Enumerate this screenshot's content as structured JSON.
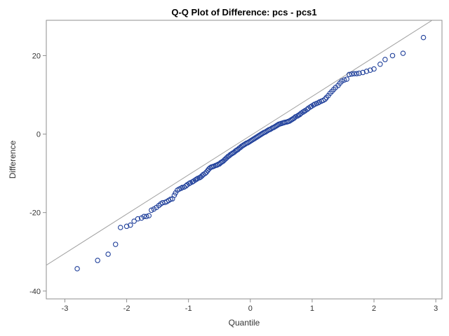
{
  "chart_data": {
    "type": "scatter",
    "title": "Q-Q Plot of Difference: pcs - pcs1",
    "xlabel": "Quantile",
    "ylabel": "Difference",
    "xlim": [
      -3.3,
      3.1
    ],
    "ylim": [
      -42,
      29
    ],
    "x_ticks": [
      -3,
      -2,
      -1,
      0,
      1,
      2,
      3
    ],
    "y_ticks": [
      -40,
      -20,
      0,
      20
    ],
    "x_tick_labels": [
      "-3",
      "-2",
      "-1",
      "0",
      "1",
      "2",
      "3"
    ],
    "y_tick_labels": [
      "-40",
      "-20",
      "0",
      "20"
    ],
    "grid": false,
    "legend": "none",
    "reference_line": {
      "intercept": -0.4,
      "slope": 10.0
    },
    "series": [
      {
        "marker": "open-circle",
        "color": "#1f3f9a",
        "points": [
          [
            -2.8,
            -34.3
          ],
          [
            -2.47,
            -32.2
          ],
          [
            -2.3,
            -30.6
          ],
          [
            -2.18,
            -28.1
          ],
          [
            -2.1,
            -23.8
          ],
          [
            -2.0,
            -23.5
          ],
          [
            -1.94,
            -23.2
          ],
          [
            -1.88,
            -22.2
          ],
          [
            -1.82,
            -21.6
          ],
          [
            -1.76,
            -21.4
          ],
          [
            -1.72,
            -21.0
          ],
          [
            -1.68,
            -21.0
          ],
          [
            -1.64,
            -20.8
          ],
          [
            -1.6,
            -19.4
          ],
          [
            -1.56,
            -19.1
          ],
          [
            -1.52,
            -18.7
          ],
          [
            -1.48,
            -18.2
          ],
          [
            -1.45,
            -17.8
          ],
          [
            -1.42,
            -17.5
          ],
          [
            -1.38,
            -17.4
          ],
          [
            -1.35,
            -17.2
          ],
          [
            -1.32,
            -16.9
          ],
          [
            -1.29,
            -16.6
          ],
          [
            -1.26,
            -16.5
          ],
          [
            -1.23,
            -15.6
          ],
          [
            -1.21,
            -15.0
          ],
          [
            -1.18,
            -14.3
          ],
          [
            -1.15,
            -14.0
          ],
          [
            -1.12,
            -13.8
          ],
          [
            -1.1,
            -13.6
          ],
          [
            -1.07,
            -13.5
          ],
          [
            -1.04,
            -13.2
          ],
          [
            -1.02,
            -12.9
          ],
          [
            -0.99,
            -12.6
          ],
          [
            -0.97,
            -12.4
          ],
          [
            -0.94,
            -12.2
          ],
          [
            -0.92,
            -12.0
          ],
          [
            -0.89,
            -11.7
          ],
          [
            -0.87,
            -11.5
          ],
          [
            -0.85,
            -11.3
          ],
          [
            -0.82,
            -11.1
          ],
          [
            -0.8,
            -10.9
          ],
          [
            -0.78,
            -10.6
          ],
          [
            -0.76,
            -10.3
          ],
          [
            -0.73,
            -10.0
          ],
          [
            -0.71,
            -9.7
          ],
          [
            -0.69,
            -9.3
          ],
          [
            -0.67,
            -8.9
          ],
          [
            -0.65,
            -8.6
          ],
          [
            -0.63,
            -8.4
          ],
          [
            -0.61,
            -8.3
          ],
          [
            -0.59,
            -8.2
          ],
          [
            -0.56,
            -8.0
          ],
          [
            -0.54,
            -7.9
          ],
          [
            -0.52,
            -7.7
          ],
          [
            -0.5,
            -7.6
          ],
          [
            -0.48,
            -7.3
          ],
          [
            -0.46,
            -7.1
          ],
          [
            -0.44,
            -6.9
          ],
          [
            -0.42,
            -6.6
          ],
          [
            -0.4,
            -6.3
          ],
          [
            -0.38,
            -6.0
          ],
          [
            -0.36,
            -5.7
          ],
          [
            -0.34,
            -5.5
          ],
          [
            -0.32,
            -5.2
          ],
          [
            -0.3,
            -5.0
          ],
          [
            -0.28,
            -4.8
          ],
          [
            -0.26,
            -4.6
          ],
          [
            -0.24,
            -4.3
          ],
          [
            -0.22,
            -4.1
          ],
          [
            -0.2,
            -3.9
          ],
          [
            -0.18,
            -3.6
          ],
          [
            -0.16,
            -3.4
          ],
          [
            -0.14,
            -3.1
          ],
          [
            -0.12,
            -2.9
          ],
          [
            -0.1,
            -2.7
          ],
          [
            -0.08,
            -2.5
          ],
          [
            -0.06,
            -2.3
          ],
          [
            -0.04,
            -2.2
          ],
          [
            -0.02,
            -2.0
          ],
          [
            0.0,
            -1.8
          ],
          [
            0.02,
            -1.6
          ],
          [
            0.04,
            -1.4
          ],
          [
            0.06,
            -1.2
          ],
          [
            0.08,
            -1.0
          ],
          [
            0.1,
            -0.8
          ],
          [
            0.12,
            -0.6
          ],
          [
            0.14,
            -0.4
          ],
          [
            0.16,
            -0.2
          ],
          [
            0.18,
            0.0
          ],
          [
            0.2,
            0.2
          ],
          [
            0.22,
            0.4
          ],
          [
            0.24,
            0.5
          ],
          [
            0.26,
            0.7
          ],
          [
            0.28,
            0.9
          ],
          [
            0.3,
            1.1
          ],
          [
            0.32,
            1.2
          ],
          [
            0.34,
            1.4
          ],
          [
            0.36,
            1.6
          ],
          [
            0.38,
            1.7
          ],
          [
            0.4,
            1.9
          ],
          [
            0.42,
            2.1
          ],
          [
            0.44,
            2.3
          ],
          [
            0.46,
            2.5
          ],
          [
            0.48,
            2.6
          ],
          [
            0.5,
            2.7
          ],
          [
            0.52,
            2.8
          ],
          [
            0.54,
            2.9
          ],
          [
            0.56,
            3.0
          ],
          [
            0.59,
            3.1
          ],
          [
            0.61,
            3.2
          ],
          [
            0.63,
            3.3
          ],
          [
            0.65,
            3.5
          ],
          [
            0.67,
            3.7
          ],
          [
            0.69,
            3.9
          ],
          [
            0.71,
            4.1
          ],
          [
            0.73,
            4.4
          ],
          [
            0.76,
            4.6
          ],
          [
            0.78,
            4.8
          ],
          [
            0.8,
            5.0
          ],
          [
            0.82,
            5.3
          ],
          [
            0.85,
            5.6
          ],
          [
            0.87,
            5.8
          ],
          [
            0.89,
            6.0
          ],
          [
            0.92,
            6.3
          ],
          [
            0.94,
            6.6
          ],
          [
            0.97,
            6.9
          ],
          [
            0.99,
            7.1
          ],
          [
            1.02,
            7.4
          ],
          [
            1.04,
            7.6
          ],
          [
            1.07,
            7.8
          ],
          [
            1.1,
            8.0
          ],
          [
            1.12,
            8.2
          ],
          [
            1.15,
            8.4
          ],
          [
            1.18,
            8.6
          ],
          [
            1.21,
            8.9
          ],
          [
            1.23,
            9.3
          ],
          [
            1.26,
            9.8
          ],
          [
            1.29,
            10.4
          ],
          [
            1.32,
            10.9
          ],
          [
            1.35,
            11.4
          ],
          [
            1.38,
            11.9
          ],
          [
            1.42,
            12.4
          ],
          [
            1.45,
            13.0
          ],
          [
            1.48,
            13.5
          ],
          [
            1.52,
            13.8
          ],
          [
            1.56,
            14.0
          ],
          [
            1.6,
            15.2
          ],
          [
            1.64,
            15.3
          ],
          [
            1.68,
            15.4
          ],
          [
            1.72,
            15.4
          ],
          [
            1.76,
            15.5
          ],
          [
            1.82,
            15.7
          ],
          [
            1.88,
            16.0
          ],
          [
            1.94,
            16.3
          ],
          [
            2.0,
            16.6
          ],
          [
            2.1,
            17.8
          ],
          [
            2.18,
            19.0
          ],
          [
            2.3,
            20.0
          ],
          [
            2.47,
            20.6
          ],
          [
            2.8,
            24.6
          ]
        ]
      }
    ]
  }
}
